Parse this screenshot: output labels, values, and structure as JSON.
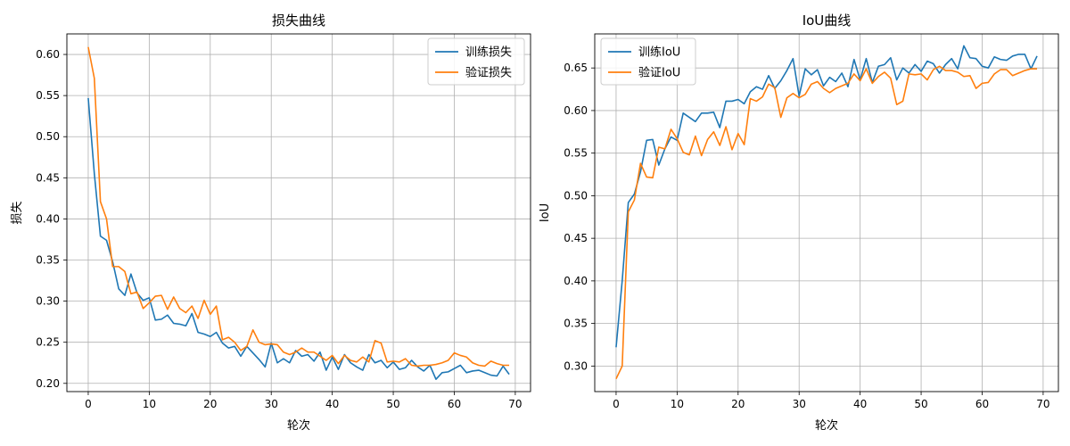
{
  "chart_data": [
    {
      "type": "line",
      "title": "损失曲线",
      "xlabel": "轮次",
      "ylabel": "损失",
      "xlim": [
        -3.5,
        72.5
      ],
      "ylim": [
        0.19,
        0.625
      ],
      "xticks": [
        0,
        10,
        20,
        30,
        40,
        50,
        60,
        70
      ],
      "yticks": [
        0.2,
        0.25,
        0.3,
        0.35,
        0.4,
        0.45,
        0.5,
        0.55,
        0.6
      ],
      "ytick_labels": [
        "0.20",
        "0.25",
        "0.30",
        "0.35",
        "0.40",
        "0.45",
        "0.50",
        "0.55",
        "0.60"
      ],
      "grid": true,
      "legend_position": "top-right",
      "x": [
        0,
        1,
        2,
        3,
        4,
        5,
        6,
        7,
        8,
        9,
        10,
        11,
        12,
        13,
        14,
        15,
        16,
        17,
        18,
        19,
        20,
        21,
        22,
        23,
        24,
        25,
        26,
        27,
        28,
        29,
        30,
        31,
        32,
        33,
        34,
        35,
        36,
        37,
        38,
        39,
        40,
        41,
        42,
        43,
        44,
        45,
        46,
        47,
        48,
        49,
        50,
        51,
        52,
        53,
        54,
        55,
        56,
        57,
        58,
        59,
        60,
        61,
        62,
        63,
        64,
        65,
        66,
        67,
        68,
        69
      ],
      "series": [
        {
          "name": "训练损失",
          "color": "#1f77b4",
          "values": [
            0.547,
            0.455,
            0.379,
            0.374,
            0.348,
            0.315,
            0.307,
            0.333,
            0.31,
            0.301,
            0.304,
            0.277,
            0.278,
            0.283,
            0.273,
            0.272,
            0.27,
            0.285,
            0.262,
            0.26,
            0.257,
            0.262,
            0.249,
            0.243,
            0.245,
            0.233,
            0.245,
            0.237,
            0.229,
            0.22,
            0.249,
            0.225,
            0.23,
            0.225,
            0.24,
            0.233,
            0.235,
            0.227,
            0.238,
            0.216,
            0.232,
            0.217,
            0.235,
            0.225,
            0.22,
            0.216,
            0.235,
            0.225,
            0.228,
            0.219,
            0.226,
            0.217,
            0.219,
            0.228,
            0.22,
            0.215,
            0.222,
            0.205,
            0.213,
            0.214,
            0.218,
            0.222,
            0.213,
            0.215,
            0.216,
            0.213,
            0.21,
            0.209,
            0.221,
            0.211
          ]
        },
        {
          "name": "验证损失",
          "color": "#ff7f0e",
          "values": [
            0.609,
            0.571,
            0.421,
            0.4,
            0.342,
            0.342,
            0.336,
            0.309,
            0.311,
            0.291,
            0.298,
            0.306,
            0.307,
            0.29,
            0.305,
            0.291,
            0.286,
            0.294,
            0.279,
            0.301,
            0.284,
            0.294,
            0.253,
            0.256,
            0.25,
            0.24,
            0.245,
            0.265,
            0.25,
            0.247,
            0.248,
            0.247,
            0.238,
            0.235,
            0.238,
            0.243,
            0.238,
            0.238,
            0.233,
            0.228,
            0.234,
            0.224,
            0.234,
            0.228,
            0.226,
            0.232,
            0.226,
            0.252,
            0.249,
            0.226,
            0.227,
            0.226,
            0.23,
            0.222,
            0.221,
            0.222,
            0.222,
            0.223,
            0.225,
            0.228,
            0.237,
            0.234,
            0.232,
            0.225,
            0.222,
            0.221,
            0.227,
            0.224,
            0.222,
            0.222
          ]
        }
      ]
    },
    {
      "type": "line",
      "title": "IoU曲线",
      "xlabel": "轮次",
      "ylabel": "IoU",
      "xlim": [
        -3.5,
        72.5
      ],
      "ylim": [
        0.27,
        0.69
      ],
      "xticks": [
        0,
        10,
        20,
        30,
        40,
        50,
        60,
        70
      ],
      "yticks": [
        0.3,
        0.35,
        0.4,
        0.45,
        0.5,
        0.55,
        0.6,
        0.65
      ],
      "ytick_labels": [
        "0.30",
        "0.35",
        "0.40",
        "0.45",
        "0.50",
        "0.55",
        "0.60",
        "0.65"
      ],
      "grid": true,
      "legend_position": "top-left",
      "x": [
        0,
        1,
        2,
        3,
        4,
        5,
        6,
        7,
        8,
        9,
        10,
        11,
        12,
        13,
        14,
        15,
        16,
        17,
        18,
        19,
        20,
        21,
        22,
        23,
        24,
        25,
        26,
        27,
        28,
        29,
        30,
        31,
        32,
        33,
        34,
        35,
        36,
        37,
        38,
        39,
        40,
        41,
        42,
        43,
        44,
        45,
        46,
        47,
        48,
        49,
        50,
        51,
        52,
        53,
        54,
        55,
        56,
        57,
        58,
        59,
        60,
        61,
        62,
        63,
        64,
        65,
        66,
        67,
        68,
        69
      ],
      "series": [
        {
          "name": "训练IoU",
          "color": "#1f77b4",
          "values": [
            0.322,
            0.4,
            0.492,
            0.502,
            0.528,
            0.565,
            0.566,
            0.536,
            0.555,
            0.569,
            0.565,
            0.597,
            0.592,
            0.587,
            0.597,
            0.597,
            0.598,
            0.58,
            0.611,
            0.611,
            0.613,
            0.608,
            0.622,
            0.628,
            0.625,
            0.641,
            0.626,
            0.635,
            0.647,
            0.661,
            0.617,
            0.649,
            0.642,
            0.648,
            0.629,
            0.639,
            0.634,
            0.644,
            0.628,
            0.66,
            0.636,
            0.661,
            0.633,
            0.652,
            0.654,
            0.662,
            0.636,
            0.65,
            0.644,
            0.654,
            0.646,
            0.658,
            0.655,
            0.644,
            0.654,
            0.661,
            0.649,
            0.676,
            0.662,
            0.661,
            0.652,
            0.65,
            0.663,
            0.66,
            0.659,
            0.664,
            0.666,
            0.666,
            0.649,
            0.664
          ]
        },
        {
          "name": "验证IoU",
          "color": "#ff7f0e",
          "values": [
            0.285,
            0.3,
            0.481,
            0.495,
            0.538,
            0.522,
            0.521,
            0.557,
            0.555,
            0.578,
            0.567,
            0.551,
            0.548,
            0.57,
            0.547,
            0.566,
            0.575,
            0.559,
            0.581,
            0.554,
            0.573,
            0.56,
            0.614,
            0.611,
            0.616,
            0.631,
            0.627,
            0.592,
            0.615,
            0.62,
            0.615,
            0.619,
            0.631,
            0.634,
            0.626,
            0.621,
            0.626,
            0.629,
            0.632,
            0.643,
            0.635,
            0.649,
            0.632,
            0.64,
            0.645,
            0.638,
            0.607,
            0.611,
            0.643,
            0.642,
            0.643,
            0.636,
            0.648,
            0.652,
            0.647,
            0.647,
            0.645,
            0.64,
            0.641,
            0.626,
            0.632,
            0.633,
            0.643,
            0.648,
            0.648,
            0.641,
            0.644,
            0.647,
            0.649,
            0.649
          ]
        }
      ]
    }
  ]
}
